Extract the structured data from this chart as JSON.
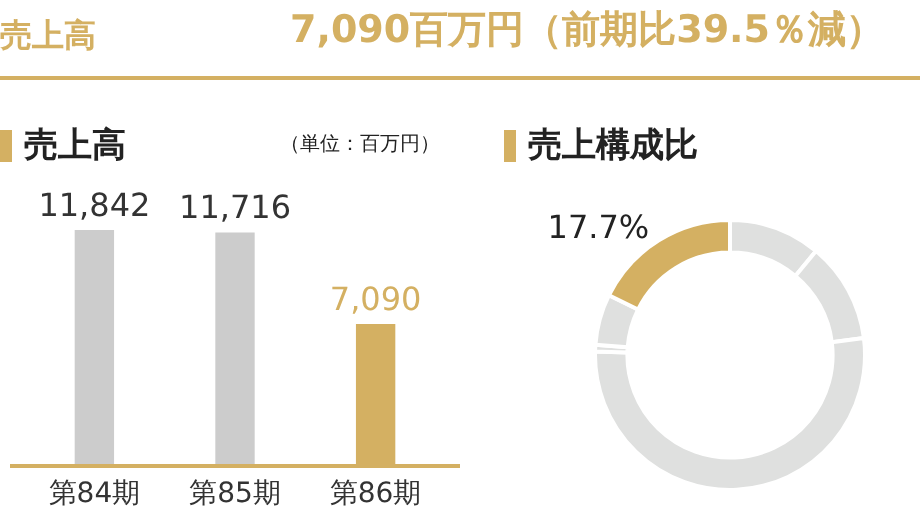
{
  "chart_data": [
    {
      "type": "other",
      "title": "売上高",
      "annotations": [
        "7,090百万円（前期比39.5％減）"
      ]
    },
    {
      "type": "bar",
      "title": "売上高",
      "annotations": [
        "（単位：百万円）"
      ],
      "categories": [
        "第84期",
        "第85期",
        "第86期"
      ],
      "values": [
        11842,
        11716,
        7090
      ],
      "colors": [
        "#cccccc",
        "#cccccc",
        "#d4b062"
      ],
      "value_labels": [
        "11,842",
        "11,716",
        "7,090"
      ]
    },
    {
      "type": "donut",
      "title": "売上構成比",
      "categories": [
        null,
        null,
        null,
        null,
        null,
        null
      ],
      "values": [
        11.0,
        12.0,
        52.4,
        0.8,
        6.1,
        17.7
      ],
      "colors": [
        "#dfe0df",
        "#dfe0df",
        "#dfe0df",
        "#dfe0df",
        "#dfe0df",
        "#d4b062"
      ],
      "value_labels": [
        null,
        null,
        null,
        null,
        null,
        "17.7%"
      ]
    }
  ]
}
